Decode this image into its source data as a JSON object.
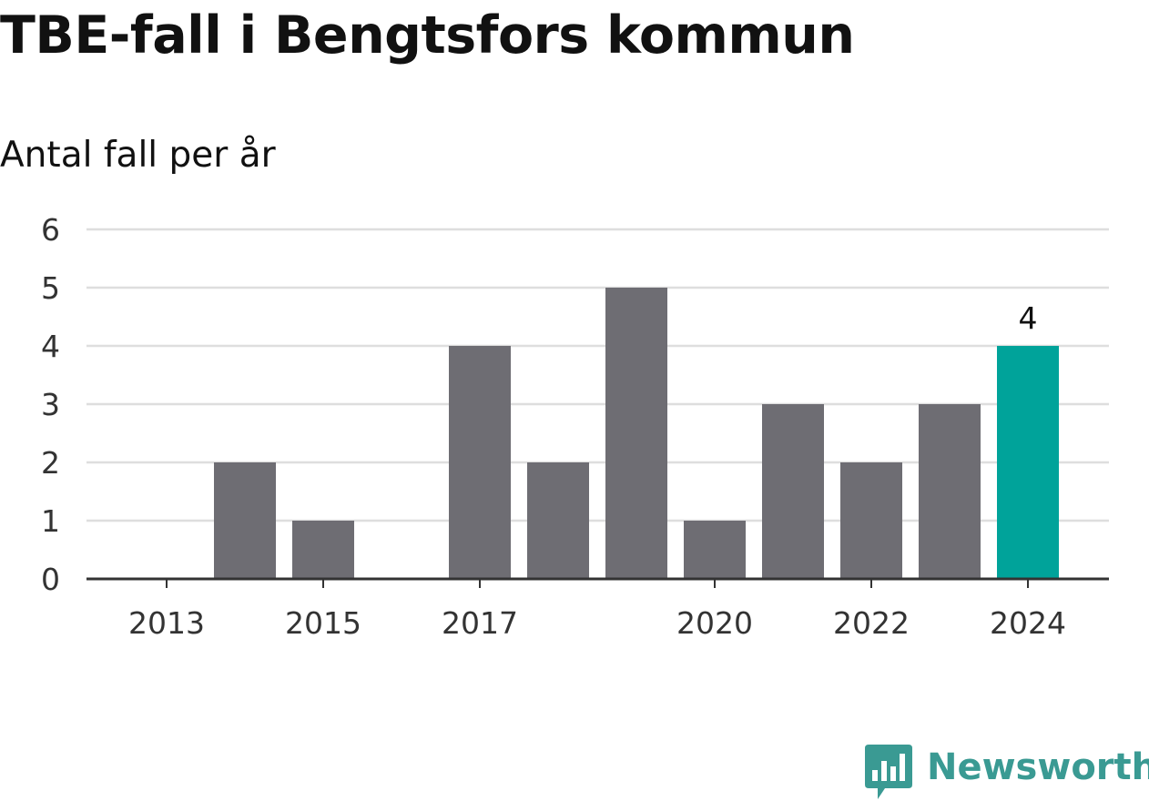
{
  "chart_data": {
    "type": "bar",
    "title": "TBE-fall i Bengtsfors kommun",
    "subtitle": "Antal fall per år",
    "categories": [
      "2013",
      "2014",
      "2015",
      "2016",
      "2017",
      "2018",
      "2019",
      "2020",
      "2021",
      "2022",
      "2023",
      "2024"
    ],
    "values": [
      0,
      2,
      1,
      0,
      4,
      2,
      5,
      1,
      3,
      2,
      3,
      4
    ],
    "x_tick_labels": [
      "2013",
      "2015",
      "2017",
      "2020",
      "2022",
      "2024"
    ],
    "y_ticks": [
      0,
      1,
      2,
      3,
      4,
      5,
      6
    ],
    "ylim": [
      0,
      6
    ],
    "grid": true,
    "highlight": {
      "category": "2024",
      "label": "4"
    },
    "colors": {
      "bar": "#6e6d73",
      "highlight": "#00a39a",
      "grid": "#dedede",
      "axis": "#333333"
    }
  },
  "brand": {
    "name": "Newsworthy",
    "icon": "newsworthy-logo-icon",
    "color": "#3a9a93"
  }
}
